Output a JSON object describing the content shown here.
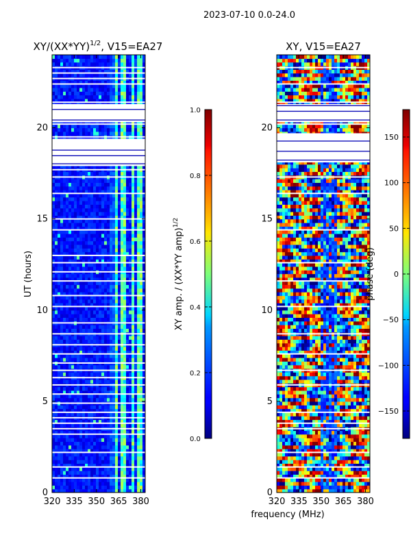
{
  "figure": {
    "title": "2023-07-10 0.0-24.0",
    "xlabel": "frequency (MHz)"
  },
  "chart_data": [
    {
      "type": "heatmap",
      "title_main": "XY/(XX*YY)",
      "title_sup": "1/2",
      "title_rest": ", V15=EA27",
      "xlabel": "",
      "ylabel": "UT (hours)",
      "xlim": [
        320,
        383
      ],
      "ylim": [
        0,
        24
      ],
      "xticks": [
        320,
        335,
        350,
        365,
        380
      ],
      "yticks": [
        0,
        5,
        10,
        15,
        20
      ],
      "colorbar": {
        "label_main": "XY amp. / (XX*YY amp)",
        "label_sup": "1/2",
        "range": [
          0.0,
          1.0
        ],
        "ticks": [
          "0.0",
          "0.2",
          "0.4",
          "0.6",
          "0.8",
          "1.0"
        ]
      },
      "blank_rows_ut": [
        0.8,
        1.4,
        2.2,
        3.2,
        3.5,
        3.8,
        4.1,
        4.4,
        4.9,
        5.4,
        5.9,
        6.3,
        6.7,
        7.1,
        7.6,
        8.1,
        8.7,
        9.3,
        10.2,
        10.8,
        11.6,
        12.1,
        12.6,
        13.0,
        14.4,
        15.0,
        16.4,
        17.3,
        17.7,
        18.1,
        18.6,
        19.2,
        19.5,
        20.2,
        21.0,
        21.4,
        22.4,
        22.7,
        23.0,
        23.3
      ],
      "blank_bands_ut": [
        [
          17.9,
          19.4
        ],
        [
          20.3,
          21.3
        ]
      ],
      "bright_channels_mhz": [
        [
          362,
          365
        ],
        [
          366,
          370
        ],
        [
          373,
          376
        ],
        [
          378,
          381
        ]
      ]
    },
    {
      "type": "heatmap",
      "title": "XY, V15=EA27",
      "xlabel": "",
      "ylabel": "",
      "xlim": [
        320,
        383
      ],
      "ylim": [
        0,
        24
      ],
      "xticks": [
        320,
        335,
        350,
        365,
        380
      ],
      "yticks": [
        0,
        5,
        10,
        15,
        20
      ],
      "colorbar": {
        "label": "phase (deg)",
        "range": [
          -180,
          180
        ],
        "ticks": [
          "150",
          "100",
          "50",
          "0",
          "−50",
          "−100",
          "−150"
        ]
      },
      "blank_rows_ut": [
        0.8,
        1.4,
        2.2,
        3.5,
        3.8,
        4.4,
        5.9,
        6.7,
        7.6,
        8.7,
        10.2,
        11.6,
        12.6,
        14.4,
        16.4,
        17.3,
        20.2,
        21.4,
        22.4,
        23.3
      ],
      "blank_bands_ut": [
        [
          18.1,
          19.7
        ],
        [
          20.3,
          21.3
        ]
      ]
    }
  ]
}
